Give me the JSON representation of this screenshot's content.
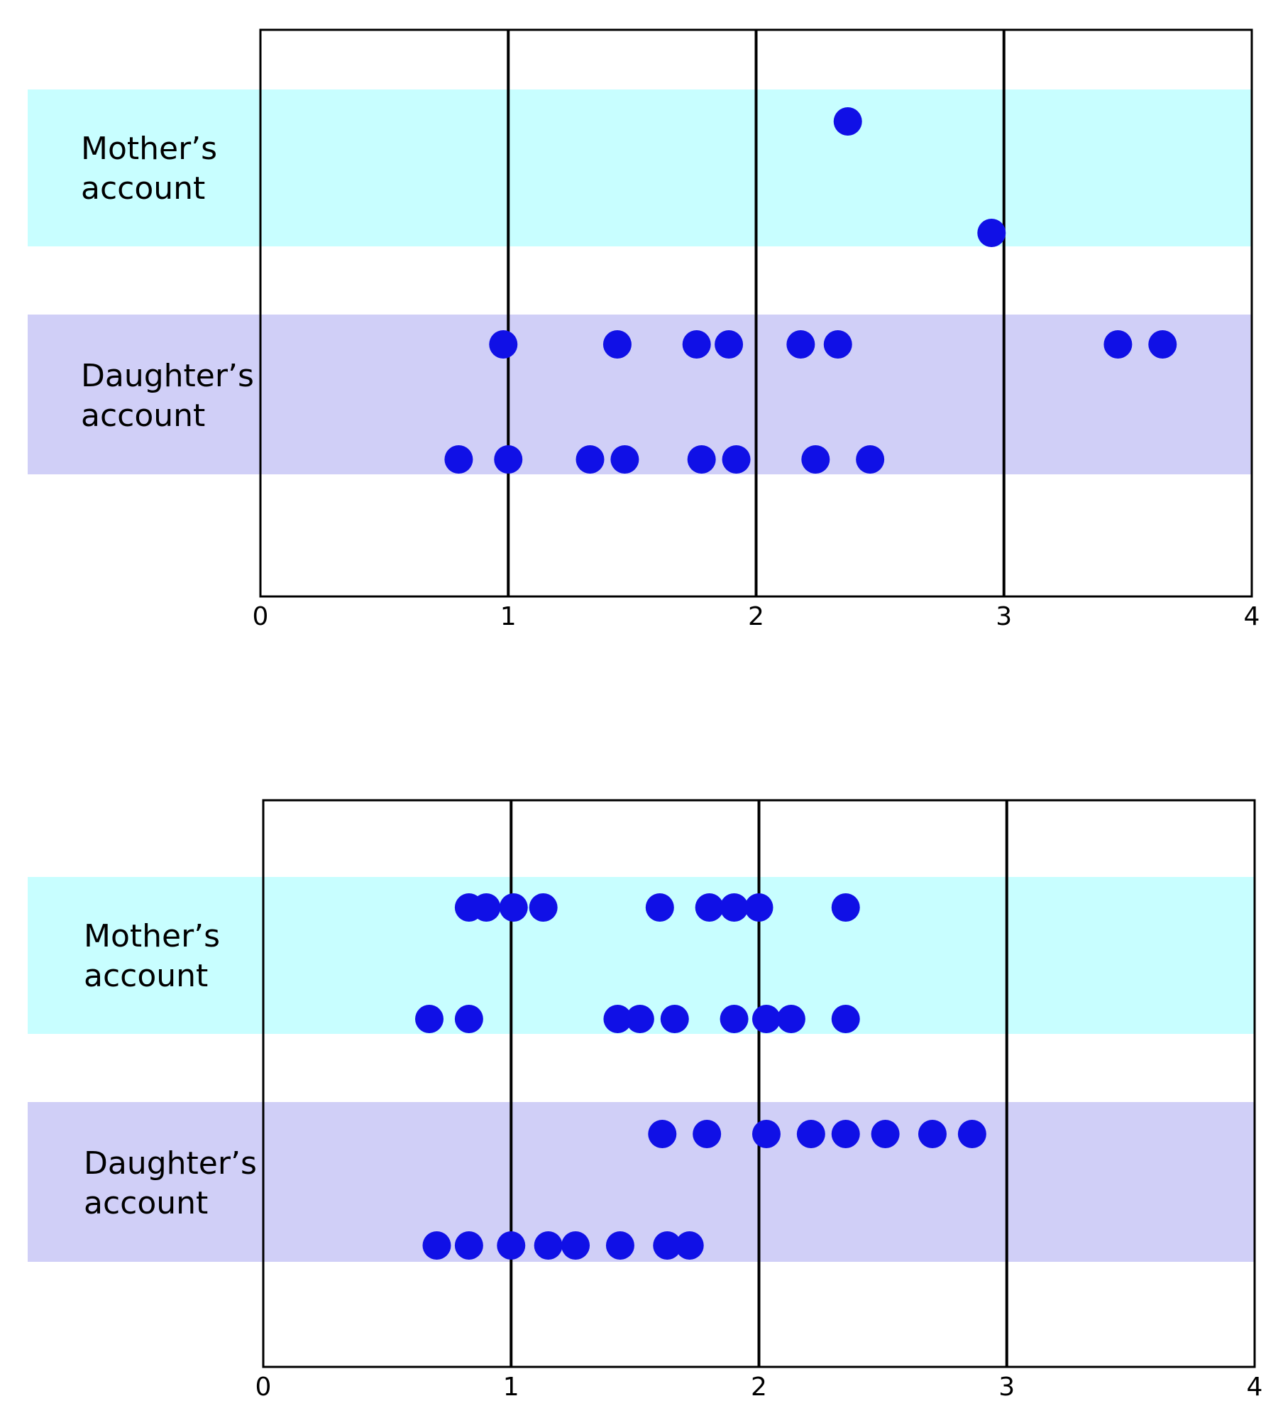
{
  "chart_data": [
    {
      "type": "scatter",
      "title": "",
      "xlabel": "",
      "ylabel": "",
      "xlim": [
        0,
        4
      ],
      "x_ticks": [
        "0",
        "1",
        "2",
        "3",
        "4"
      ],
      "gridlines_x": [
        1,
        2,
        3
      ],
      "bands": [
        {
          "name": "Mother’s account",
          "line1": "Mother’s",
          "line2": "account",
          "color": "#c8feff"
        },
        {
          "name": "Daughter’s account",
          "line1": "Daughter’s",
          "line2": "account",
          "color": "#d0cff7"
        }
      ],
      "rows": [
        {
          "band": 0,
          "values": [
            2.37
          ]
        },
        {
          "band": 0,
          "values": [
            2.95
          ]
        },
        {
          "band": 1,
          "values": [
            0.98,
            1.44,
            1.76,
            1.89,
            2.18,
            2.33,
            3.46,
            3.64
          ]
        },
        {
          "band": 1,
          "values": [
            0.8,
            1.0,
            1.33,
            1.47,
            1.78,
            1.92,
            2.24,
            2.46
          ]
        }
      ],
      "point_color": "#1010e6"
    },
    {
      "type": "scatter",
      "title": "",
      "xlabel": "",
      "ylabel": "",
      "xlim": [
        0,
        4
      ],
      "x_ticks": [
        "0",
        "1",
        "2",
        "3",
        "4"
      ],
      "gridlines_x": [
        1,
        2,
        3
      ],
      "bands": [
        {
          "name": "Mother’s account",
          "line1": "Mother’s",
          "line2": "account",
          "color": "#c8feff"
        },
        {
          "name": "Daughter’s account",
          "line1": "Daughter’s",
          "line2": "account",
          "color": "#d0cff7"
        }
      ],
      "rows": [
        {
          "band": 0,
          "values": [
            0.83,
            0.9,
            1.01,
            1.13,
            1.6,
            1.8,
            1.9,
            2.0,
            2.35
          ]
        },
        {
          "band": 0,
          "values": [
            0.67,
            0.83,
            1.43,
            1.52,
            1.66,
            1.9,
            2.03,
            2.13,
            2.35
          ]
        },
        {
          "band": 1,
          "values": [
            1.61,
            1.79,
            2.03,
            2.21,
            2.35,
            2.51,
            2.7,
            2.86
          ]
        },
        {
          "band": 1,
          "values": [
            0.7,
            0.83,
            1.0,
            1.15,
            1.26,
            1.44,
            1.63,
            1.72
          ]
        }
      ],
      "point_color": "#1010e6"
    }
  ]
}
